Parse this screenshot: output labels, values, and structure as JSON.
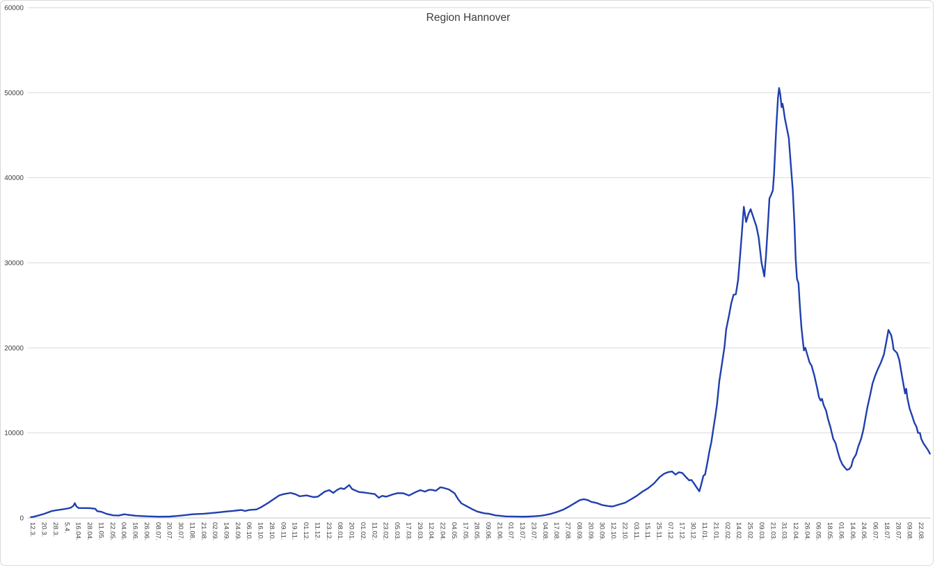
{
  "chart_data": {
    "type": "line",
    "title": "Region Hannover",
    "xlabel": "",
    "ylabel": "",
    "ylim": [
      0,
      60000
    ],
    "y_ticks": [
      0,
      10000,
      20000,
      30000,
      40000,
      50000,
      60000
    ],
    "grid": true,
    "legend": "none",
    "x_tick_rotation_deg": 90,
    "categories": [
      "12.3.",
      "20.3.",
      "28.3.",
      "5.4.",
      "16.04.",
      "28.04.",
      "11.05.",
      "22.05.",
      "04.06.",
      "16.06.",
      "26.06.",
      "08.07.",
      "20.07.",
      "30.07.",
      "11.08.",
      "21.08.",
      "02.09.",
      "14.09.",
      "24.09.",
      "06.10.",
      "16.10.",
      "28.10.",
      "09.11.",
      "19.11.",
      "01.12.",
      "11.12.",
      "23.12.",
      "08.01.",
      "20.01.",
      "01.02.",
      "11.02.",
      "23.02.",
      "05.03.",
      "17.03.",
      "29.03.",
      "12.04.",
      "22.04.",
      "04.05.",
      "17.05.",
      "28.05.",
      "09.06.",
      "21.06.",
      "01.07.",
      "13.07.",
      "23.07.",
      "04.08.",
      "17.08.",
      "27.08.",
      "08.09.",
      "20.09.",
      "30.09.",
      "12.10.",
      "22.10.",
      "03.11.",
      "15.11.",
      "25.11.",
      "07.12.",
      "17.12.",
      "30.12.",
      "11.01.",
      "21.01.",
      "02.02.",
      "14.02.",
      "25.02.",
      "09.03.",
      "21.03.",
      "31.03.",
      "12.04.",
      "26.04.",
      "06.05.",
      "18.05.",
      "01.06.",
      "14.06.",
      "24.06.",
      "06.07.",
      "18.07.",
      "28.07.",
      "09.08.",
      "22.08."
    ],
    "series": [
      {
        "name": "Region Hannover",
        "points": [
          [
            -0.2,
            100
          ],
          [
            0,
            130
          ],
          [
            0.5,
            300
          ],
          [
            1,
            500
          ],
          [
            1.6,
            800
          ],
          [
            2,
            900
          ],
          [
            2.5,
            1000
          ],
          [
            3,
            1100
          ],
          [
            3.3,
            1200
          ],
          [
            3.55,
            1450
          ],
          [
            3.65,
            1740
          ],
          [
            3.8,
            1350
          ],
          [
            4,
            1160
          ],
          [
            4.5,
            1160
          ],
          [
            5,
            1150
          ],
          [
            5.45,
            1080
          ],
          [
            5.62,
            800
          ],
          [
            6,
            720
          ],
          [
            6.4,
            500
          ],
          [
            7,
            310
          ],
          [
            7.5,
            280
          ],
          [
            8,
            430
          ],
          [
            8.3,
            370
          ],
          [
            9,
            260
          ],
          [
            10,
            190
          ],
          [
            11,
            150
          ],
          [
            12,
            160
          ],
          [
            13,
            280
          ],
          [
            14,
            430
          ],
          [
            15,
            500
          ],
          [
            16,
            620
          ],
          [
            17,
            760
          ],
          [
            17.6,
            830
          ],
          [
            18,
            900
          ],
          [
            18.3,
            930
          ],
          [
            18.6,
            820
          ],
          [
            19,
            950
          ],
          [
            19.6,
            1000
          ],
          [
            20,
            1250
          ],
          [
            20.6,
            1740
          ],
          [
            21,
            2100
          ],
          [
            21.6,
            2650
          ],
          [
            22,
            2800
          ],
          [
            22.6,
            2940
          ],
          [
            23,
            2800
          ],
          [
            23.4,
            2550
          ],
          [
            24,
            2650
          ],
          [
            24.6,
            2450
          ],
          [
            25,
            2500
          ],
          [
            25.6,
            3100
          ],
          [
            26,
            3270
          ],
          [
            26.35,
            2940
          ],
          [
            26.7,
            3300
          ],
          [
            27,
            3500
          ],
          [
            27.3,
            3400
          ],
          [
            27.75,
            3870
          ],
          [
            28,
            3400
          ],
          [
            28.6,
            3050
          ],
          [
            29,
            3000
          ],
          [
            29.5,
            2900
          ],
          [
            30,
            2800
          ],
          [
            30.35,
            2370
          ],
          [
            30.65,
            2600
          ],
          [
            31,
            2500
          ],
          [
            31.6,
            2780
          ],
          [
            32,
            2920
          ],
          [
            32.5,
            2900
          ],
          [
            33,
            2640
          ],
          [
            33.6,
            3050
          ],
          [
            34,
            3270
          ],
          [
            34.4,
            3100
          ],
          [
            34.75,
            3300
          ],
          [
            35,
            3300
          ],
          [
            35.35,
            3200
          ],
          [
            35.75,
            3600
          ],
          [
            36,
            3550
          ],
          [
            36.5,
            3350
          ],
          [
            37,
            2900
          ],
          [
            37.3,
            2230
          ],
          [
            37.6,
            1720
          ],
          [
            38,
            1420
          ],
          [
            38.6,
            1000
          ],
          [
            39,
            750
          ],
          [
            39.6,
            550
          ],
          [
            40,
            500
          ],
          [
            40.6,
            300
          ],
          [
            41,
            250
          ],
          [
            41.5,
            180
          ],
          [
            42,
            170
          ],
          [
            43,
            150
          ],
          [
            43.5,
            160
          ],
          [
            44,
            200
          ],
          [
            44.6,
            260
          ],
          [
            45,
            350
          ],
          [
            45.5,
            500
          ],
          [
            46,
            700
          ],
          [
            46.5,
            950
          ],
          [
            47,
            1300
          ],
          [
            47.5,
            1700
          ],
          [
            48,
            2100
          ],
          [
            48.35,
            2200
          ],
          [
            48.7,
            2100
          ],
          [
            49,
            1900
          ],
          [
            49.5,
            1750
          ],
          [
            50,
            1500
          ],
          [
            50.5,
            1400
          ],
          [
            50.85,
            1350
          ],
          [
            51,
            1400
          ],
          [
            51.5,
            1600
          ],
          [
            52,
            1800
          ],
          [
            52.5,
            2200
          ],
          [
            53,
            2600
          ],
          [
            53.5,
            3100
          ],
          [
            54,
            3500
          ],
          [
            54.5,
            4050
          ],
          [
            55,
            4800
          ],
          [
            55.4,
            5200
          ],
          [
            55.8,
            5400
          ],
          [
            56.1,
            5460
          ],
          [
            56.4,
            5100
          ],
          [
            56.7,
            5370
          ],
          [
            57,
            5290
          ],
          [
            57.3,
            4830
          ],
          [
            57.6,
            4420
          ],
          [
            57.8,
            4470
          ],
          [
            58,
            4100
          ],
          [
            58.3,
            3500
          ],
          [
            58.5,
            3130
          ],
          [
            58.65,
            3870
          ],
          [
            58.85,
            4960
          ],
          [
            59,
            5100
          ],
          [
            59.2,
            6500
          ],
          [
            59.4,
            8000
          ],
          [
            59.55,
            8900
          ],
          [
            59.75,
            10700
          ],
          [
            59.9,
            12000
          ],
          [
            60.05,
            13400
          ],
          [
            60.25,
            16100
          ],
          [
            60.5,
            18300
          ],
          [
            60.7,
            20100
          ],
          [
            60.85,
            22150
          ],
          [
            61.1,
            23800
          ],
          [
            61.3,
            25270
          ],
          [
            61.5,
            26250
          ],
          [
            61.7,
            26300
          ],
          [
            61.9,
            28000
          ],
          [
            62.05,
            30500
          ],
          [
            62.2,
            33000
          ],
          [
            62.4,
            36590
          ],
          [
            62.6,
            34800
          ],
          [
            62.8,
            35700
          ],
          [
            63,
            36300
          ],
          [
            63.3,
            35100
          ],
          [
            63.5,
            34300
          ],
          [
            63.7,
            33000
          ],
          [
            63.95,
            30050
          ],
          [
            64.2,
            28400
          ],
          [
            64.35,
            30870
          ],
          [
            64.55,
            35240
          ],
          [
            64.65,
            37550
          ],
          [
            64.8,
            38000
          ],
          [
            64.95,
            38500
          ],
          [
            65.05,
            40400
          ],
          [
            65.25,
            45870
          ],
          [
            65.4,
            49400
          ],
          [
            65.5,
            50550
          ],
          [
            65.6,
            49800
          ],
          [
            65.72,
            48300
          ],
          [
            65.8,
            48700
          ],
          [
            65.88,
            48100
          ],
          [
            66,
            47000
          ],
          [
            66.15,
            46000
          ],
          [
            66.35,
            44700
          ],
          [
            66.5,
            42000
          ],
          [
            66.7,
            38500
          ],
          [
            66.85,
            34500
          ],
          [
            66.95,
            30500
          ],
          [
            67.07,
            28100
          ],
          [
            67.2,
            27600
          ],
          [
            67.32,
            25000
          ],
          [
            67.45,
            22500
          ],
          [
            67.57,
            21000
          ],
          [
            67.68,
            19700
          ],
          [
            67.8,
            20000
          ],
          [
            67.93,
            19400
          ],
          [
            68.17,
            18300
          ],
          [
            68.35,
            17900
          ],
          [
            68.6,
            16700
          ],
          [
            68.85,
            15200
          ],
          [
            69,
            14200
          ],
          [
            69.15,
            13800
          ],
          [
            69.27,
            14000
          ],
          [
            69.4,
            13300
          ],
          [
            69.63,
            12600
          ],
          [
            69.8,
            11600
          ],
          [
            70,
            10700
          ],
          [
            70.25,
            9300
          ],
          [
            70.45,
            8800
          ],
          [
            70.65,
            7800
          ],
          [
            70.85,
            6900
          ],
          [
            71.05,
            6300
          ],
          [
            71.22,
            6000
          ],
          [
            71.35,
            5800
          ],
          [
            71.46,
            5650
          ],
          [
            71.65,
            5750
          ],
          [
            71.83,
            6050
          ],
          [
            72,
            6900
          ],
          [
            72.25,
            7450
          ],
          [
            72.45,
            8400
          ],
          [
            72.7,
            9300
          ],
          [
            72.9,
            10400
          ],
          [
            73.05,
            11500
          ],
          [
            73.25,
            13000
          ],
          [
            73.5,
            14500
          ],
          [
            73.7,
            15800
          ],
          [
            73.95,
            16800
          ],
          [
            74.2,
            17600
          ],
          [
            74.45,
            18300
          ],
          [
            74.7,
            19200
          ],
          [
            74.9,
            20600
          ],
          [
            75.1,
            22100
          ],
          [
            75.35,
            21450
          ],
          [
            75.45,
            20780
          ],
          [
            75.55,
            19800
          ],
          [
            75.85,
            19400
          ],
          [
            76.05,
            18600
          ],
          [
            76.25,
            17000
          ],
          [
            76.45,
            15460
          ],
          [
            76.56,
            14640
          ],
          [
            76.66,
            15190
          ],
          [
            76.76,
            14100
          ],
          [
            76.96,
            12870
          ],
          [
            77.17,
            12050
          ],
          [
            77.37,
            11230
          ],
          [
            77.57,
            10690
          ],
          [
            77.7,
            10000
          ],
          [
            77.87,
            10000
          ],
          [
            77.97,
            9330
          ],
          [
            78.17,
            8780
          ],
          [
            78.38,
            8370
          ],
          [
            78.58,
            7960
          ],
          [
            78.74,
            7550
          ]
        ]
      }
    ],
    "colors": {
      "line": "#1f3fae",
      "gridline": "#d9d9d9",
      "axis_line": "#c3c3c3",
      "tick_text": "#3f3f3f",
      "title_text": "#3b3b3b",
      "background": "#ffffff",
      "border": "#d9d9d9"
    }
  }
}
